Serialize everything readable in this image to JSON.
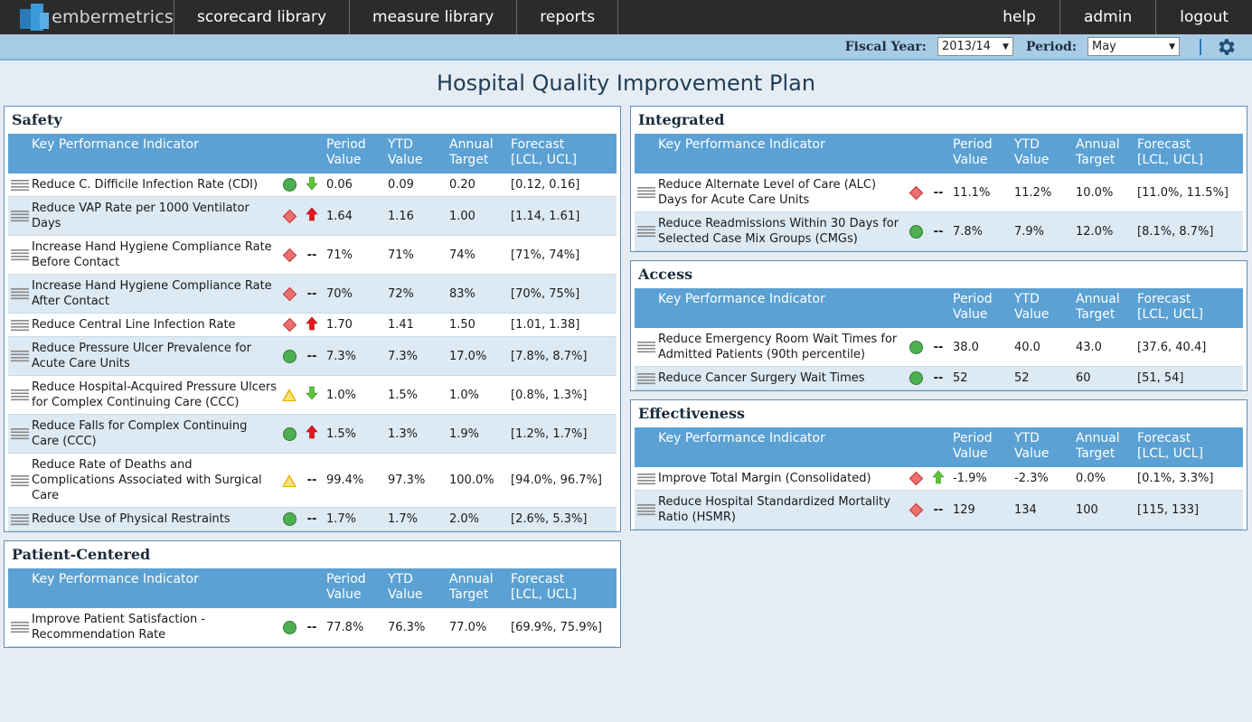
{
  "app": {
    "logo_text": "embermetrics",
    "nav": [
      "scorecard library",
      "measure library",
      "reports"
    ],
    "nav_right": [
      "help",
      "admin",
      "logout"
    ]
  },
  "filters": {
    "fiscal_year_label": "Fiscal Year:",
    "fiscal_year_value": "2013/14",
    "period_label": "Period:",
    "period_value": "May"
  },
  "title": "Hospital Quality Improvement Plan",
  "headers": {
    "kpi": "Key Performance Indicator",
    "period": [
      "Period",
      "Value"
    ],
    "ytd": [
      "YTD",
      "Value"
    ],
    "annual": [
      "Annual",
      "Target"
    ],
    "forecast": [
      "Forecast",
      "[LCL, UCL]"
    ]
  },
  "status_colors": {
    "good": "#4caf50",
    "bad": "#ec6e6e",
    "warn": "#f0c020"
  },
  "left_panels": [
    {
      "title": "Safety",
      "rows": [
        {
          "name": "Reduce C. Difficile Infection Rate (CDI)",
          "status": "good",
          "trend": "down-green",
          "period": "0.06",
          "ytd": "0.09",
          "target": "0.20",
          "forecast": "[0.12, 0.16]"
        },
        {
          "name": "Reduce VAP Rate per 1000 Ventilator Days",
          "status": "bad",
          "trend": "up-red",
          "period": "1.64",
          "ytd": "1.16",
          "target": "1.00",
          "forecast": "[1.14, 1.61]"
        },
        {
          "name": "Increase Hand Hygiene Compliance Rate Before Contact",
          "status": "bad",
          "trend": "none",
          "period": "71%",
          "ytd": "71%",
          "target": "74%",
          "forecast": "[71%, 74%]"
        },
        {
          "name": "Increase Hand Hygiene Compliance Rate After Contact",
          "status": "bad",
          "trend": "none",
          "period": "70%",
          "ytd": "72%",
          "target": "83%",
          "forecast": "[70%, 75%]"
        },
        {
          "name": "Reduce Central Line Infection Rate",
          "status": "bad",
          "trend": "up-red",
          "period": "1.70",
          "ytd": "1.41",
          "target": "1.50",
          "forecast": "[1.01, 1.38]"
        },
        {
          "name": "Reduce Pressure Ulcer Prevalence for Acute Care Units",
          "status": "good",
          "trend": "none",
          "period": "7.3%",
          "ytd": "7.3%",
          "target": "17.0%",
          "forecast": "[7.8%, 8.7%]"
        },
        {
          "name": "Reduce Hospital-Acquired Pressure Ulcers for Complex Continuing Care (CCC)",
          "status": "warn",
          "trend": "down-green",
          "period": "1.0%",
          "ytd": "1.5%",
          "target": "1.0%",
          "forecast": "[0.8%, 1.3%]"
        },
        {
          "name": "Reduce Falls for Complex Continuing Care (CCC)",
          "status": "good",
          "trend": "up-red",
          "period": "1.5%",
          "ytd": "1.3%",
          "target": "1.9%",
          "forecast": "[1.2%, 1.7%]"
        },
        {
          "name": "Reduce Rate of Deaths and Complications Associated with Surgical Care",
          "status": "warn",
          "trend": "none",
          "period": "99.4%",
          "ytd": "97.3%",
          "target": "100.0%",
          "forecast": "[94.0%, 96.7%]"
        },
        {
          "name": "Reduce Use of Physical Restraints",
          "status": "good",
          "trend": "none",
          "period": "1.7%",
          "ytd": "1.7%",
          "target": "2.0%",
          "forecast": "[2.6%, 5.3%]"
        }
      ]
    },
    {
      "title": "Patient-Centered",
      "rows": [
        {
          "name": "Improve Patient Satisfaction - Recommendation Rate",
          "status": "good",
          "trend": "none",
          "period": "77.8%",
          "ytd": "76.3%",
          "target": "77.0%",
          "forecast": "[69.9%, 75.9%]"
        }
      ]
    }
  ],
  "right_panels": [
    {
      "title": "Integrated",
      "rows": [
        {
          "name": "Reduce Alternate Level of Care (ALC) Days for Acute Care Units",
          "status": "bad",
          "trend": "none",
          "period": "11.1%",
          "ytd": "11.2%",
          "target": "10.0%",
          "forecast": "[11.0%, 11.5%]"
        },
        {
          "name": "Reduce Readmissions Within 30 Days for Selected Case Mix Groups (CMGs)",
          "status": "good",
          "trend": "none",
          "period": "7.8%",
          "ytd": "7.9%",
          "target": "12.0%",
          "forecast": "[8.1%, 8.7%]"
        }
      ]
    },
    {
      "title": "Access",
      "rows": [
        {
          "name": "Reduce Emergency Room Wait Times for Admitted Patients (90th percentile)",
          "status": "good",
          "trend": "none",
          "period": "38.0",
          "ytd": "40.0",
          "target": "43.0",
          "forecast": "[37.6, 40.4]"
        },
        {
          "name": "Reduce Cancer Surgery Wait Times",
          "status": "good",
          "trend": "none",
          "period": "52",
          "ytd": "52",
          "target": "60",
          "forecast": "[51, 54]"
        }
      ]
    },
    {
      "title": "Effectiveness",
      "rows": [
        {
          "name": "Improve Total Margin (Consolidated)",
          "status": "bad",
          "trend": "up-green",
          "period": "-1.9%",
          "ytd": "-2.3%",
          "target": "0.0%",
          "forecast": "[0.1%, 3.3%]"
        },
        {
          "name": "Reduce Hospital Standardized Mortality Ratio (HSMR)",
          "status": "bad",
          "trend": "none",
          "period": "129",
          "ytd": "134",
          "target": "100",
          "forecast": "[115, 133]"
        }
      ]
    }
  ]
}
